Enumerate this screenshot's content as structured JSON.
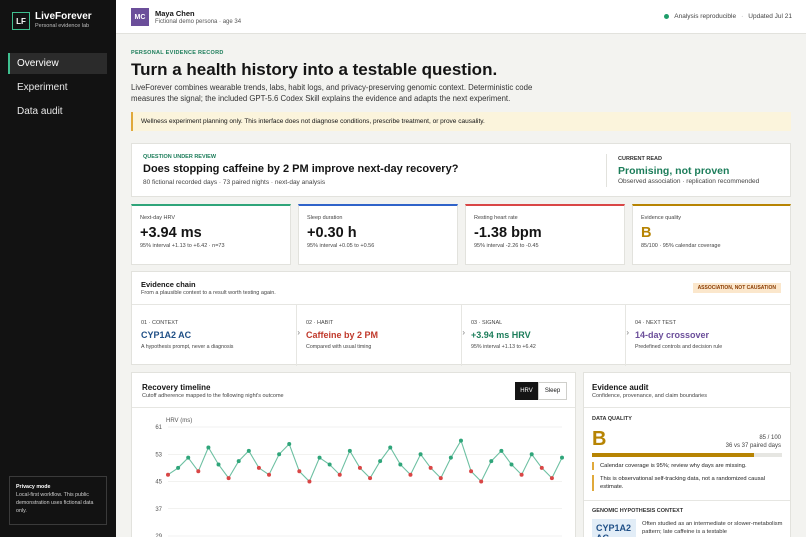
{
  "sidebar": {
    "logo": "LF",
    "brand_name": "LiveForever",
    "brand_sub": "Personal evidence lab",
    "nav": [
      {
        "label": "Overview",
        "active": true
      },
      {
        "label": "Experiment",
        "active": false
      },
      {
        "label": "Data audit",
        "active": false
      }
    ],
    "privacy": {
      "title": "Privacy mode",
      "text": "Local-first workflow. This public demonstration uses fictional data only."
    }
  },
  "topbar": {
    "avatar_initials": "MC",
    "user_name": "Maya Chen",
    "user_sub": "Fictional demo persona · age 34",
    "status": "Analysis reproducible",
    "updated": "Updated Jul 21",
    "status_color": "#1f9d6a"
  },
  "header": {
    "eyebrow": "PERSONAL EVIDENCE RECORD",
    "title": "Turn a health history into a testable question.",
    "intro": "LiveForever combines wearable trends, labs, habit logs, and privacy-preserving genomic context. Deterministic code measures the signal; the included GPT-5.6 Codex Skill explains the evidence and adapts the next experiment.",
    "notice": "Wellness experiment planning only. This interface does not diagnose conditions, prescribe treatment, or prove causality."
  },
  "question": {
    "eyebrow": "QUESTION UNDER REVIEW",
    "title": "Does stopping caffeine by 2 PM improve next-day recovery?",
    "sub": "80 fictional recorded days · 73 paired nights · next-day analysis",
    "read_eyebrow": "CURRENT READ",
    "read_title": "Promising, not proven",
    "read_sub": "Observed association · replication recommended"
  },
  "metrics": [
    {
      "label": "Next-day HRV",
      "value": "+3.94 ms",
      "sub": "95% interval +1.13 to +6.42 · n=73",
      "color": "#2fa57a"
    },
    {
      "label": "Sleep duration",
      "value": "+0.30 h",
      "sub": "95% interval +0.05 to +0.56",
      "color": "#2f63c9"
    },
    {
      "label": "Resting heart rate",
      "value": "-1.38 bpm",
      "sub": "95% interval -2.26 to -0.45",
      "color": "#d94646"
    },
    {
      "label": "Evidence quality",
      "value": "B",
      "sub": "85/100 · 95% calendar coverage",
      "color": "#b78403"
    }
  ],
  "chain": {
    "title": "Evidence chain",
    "sub": "From a plausible context to a result worth testing again.",
    "badge": "ASSOCIATION, NOT CAUSATION",
    "steps": [
      {
        "eyebrow": "01 · CONTEXT",
        "title": "CYP1A2 AC",
        "sub": "A hypothesis prompt, never a diagnosis",
        "color": "#1f4f86"
      },
      {
        "eyebrow": "02 · HABIT",
        "title": "Caffeine by 2 PM",
        "sub": "Compared with usual timing",
        "color": "#c0392b"
      },
      {
        "eyebrow": "03 · SIGNAL",
        "title": "+3.94 ms HRV",
        "sub": "95% interval +1.13 to +6.42",
        "color": "#1c7d5a"
      },
      {
        "eyebrow": "04 · NEXT TEST",
        "title": "14-day crossover",
        "sub": "Predefined controls and decision rule",
        "color": "#6b4e9a"
      }
    ]
  },
  "timeline": {
    "title": "Recovery timeline",
    "sub": "Cutoff adherence mapped to the following night's outcome",
    "toggles": [
      {
        "label": "HRV",
        "active": true
      },
      {
        "label": "Sleep",
        "active": false
      }
    ]
  },
  "chart_data": {
    "type": "line",
    "ylabel": "HRV (ms)",
    "y_ticks": [
      61,
      53,
      45,
      37,
      29
    ],
    "ylim": [
      29,
      61
    ],
    "grid": true,
    "series": [
      {
        "color": "#2fa57a",
        "values": [
          47,
          49,
          52,
          48,
          55,
          50,
          46,
          51,
          54,
          49,
          47,
          53,
          56,
          48,
          45,
          52,
          50,
          47,
          54,
          49,
          46,
          51,
          55,
          50,
          47,
          53,
          49,
          46,
          52,
          57,
          48,
          45,
          51,
          54,
          50,
          47,
          53,
          49,
          46,
          52
        ]
      }
    ],
    "points": [
      {
        "x": 0,
        "y": 47,
        "group": "before"
      },
      {
        "x": 1,
        "y": 49,
        "group": "after"
      },
      {
        "x": 2,
        "y": 52,
        "group": "after"
      },
      {
        "x": 3,
        "y": 48,
        "group": "before"
      },
      {
        "x": 4,
        "y": 55,
        "group": "after"
      },
      {
        "x": 5,
        "y": 50,
        "group": "after"
      },
      {
        "x": 6,
        "y": 46,
        "group": "before"
      },
      {
        "x": 7,
        "y": 51,
        "group": "after"
      },
      {
        "x": 8,
        "y": 54,
        "group": "after"
      },
      {
        "x": 9,
        "y": 49,
        "group": "before"
      },
      {
        "x": 10,
        "y": 47,
        "group": "before"
      },
      {
        "x": 11,
        "y": 53,
        "group": "after"
      },
      {
        "x": 12,
        "y": 56,
        "group": "after"
      },
      {
        "x": 13,
        "y": 48,
        "group": "before"
      },
      {
        "x": 14,
        "y": 45,
        "group": "before"
      },
      {
        "x": 15,
        "y": 52,
        "group": "after"
      },
      {
        "x": 16,
        "y": 50,
        "group": "after"
      },
      {
        "x": 17,
        "y": 47,
        "group": "before"
      },
      {
        "x": 18,
        "y": 54,
        "group": "after"
      },
      {
        "x": 19,
        "y": 49,
        "group": "before"
      },
      {
        "x": 20,
        "y": 46,
        "group": "before"
      },
      {
        "x": 21,
        "y": 51,
        "group": "after"
      },
      {
        "x": 22,
        "y": 55,
        "group": "after"
      },
      {
        "x": 23,
        "y": 50,
        "group": "after"
      },
      {
        "x": 24,
        "y": 47,
        "group": "before"
      },
      {
        "x": 25,
        "y": 53,
        "group": "after"
      },
      {
        "x": 26,
        "y": 49,
        "group": "before"
      },
      {
        "x": 27,
        "y": 46,
        "group": "before"
      },
      {
        "x": 28,
        "y": 52,
        "group": "after"
      },
      {
        "x": 29,
        "y": 57,
        "group": "after"
      },
      {
        "x": 30,
        "y": 48,
        "group": "before"
      },
      {
        "x": 31,
        "y": 45,
        "group": "before"
      },
      {
        "x": 32,
        "y": 51,
        "group": "after"
      },
      {
        "x": 33,
        "y": 54,
        "group": "after"
      },
      {
        "x": 34,
        "y": 50,
        "group": "after"
      },
      {
        "x": 35,
        "y": 47,
        "group": "before"
      },
      {
        "x": 36,
        "y": 53,
        "group": "after"
      },
      {
        "x": 37,
        "y": 49,
        "group": "before"
      },
      {
        "x": 38,
        "y": 46,
        "group": "before"
      },
      {
        "x": 39,
        "y": 52,
        "group": "after"
      }
    ],
    "point_colors": {
      "after": "#2fa57a",
      "before": "#d94646"
    }
  },
  "audit": {
    "title": "Evidence audit",
    "sub": "Confidence, provenance, and claim boundaries",
    "quality_eyebrow": "DATA QUALITY",
    "grade": "B",
    "score": "85 / 100",
    "paired": "36 vs 37 paired days",
    "quality_fraction": 0.85,
    "notes": [
      "Calendar coverage is 95%; review why days are missing.",
      "This is observational self-tracking data, not a randomized causal estimate."
    ],
    "genomic_eyebrow": "GENOMIC HYPOTHESIS CONTEXT",
    "genomic_tag": "CYP1A2 AC",
    "genomic_text": "Often studied as an intermediate or slower-metabolism pattern; late caffeine is a testable"
  }
}
